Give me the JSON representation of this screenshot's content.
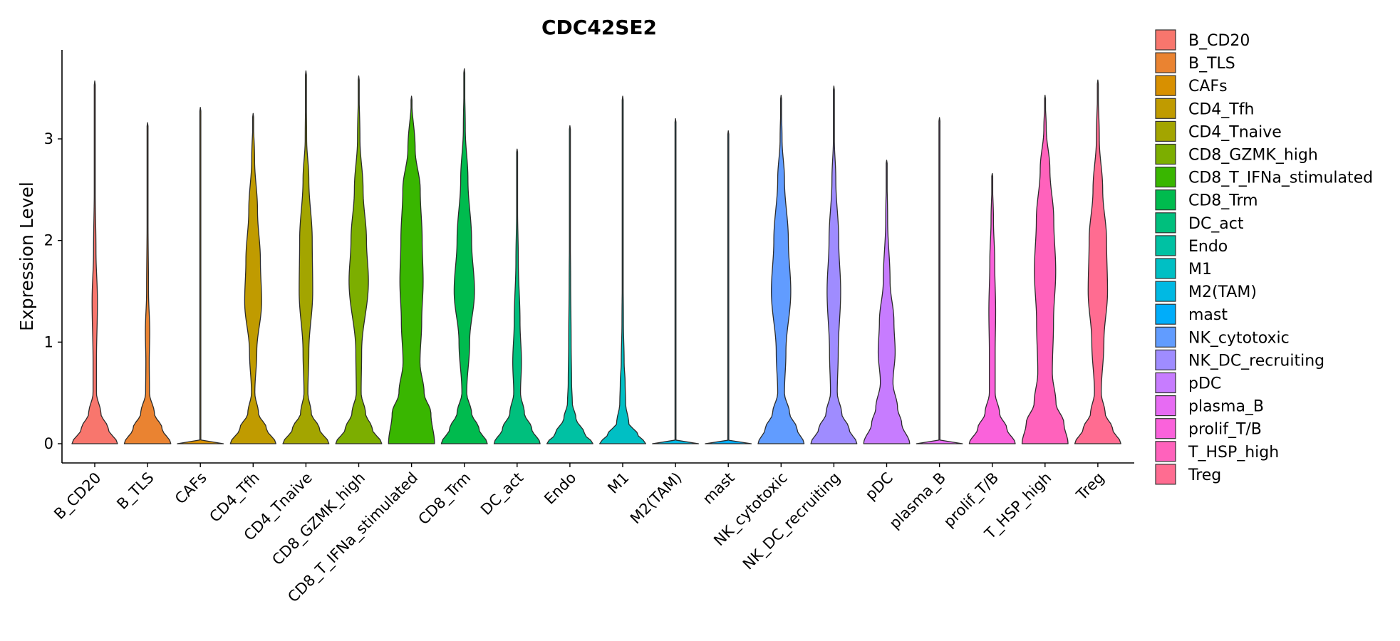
{
  "chart_data": {
    "type": "violin",
    "title": "CDC42SE2",
    "xlabel": "",
    "ylabel": "Expression Level",
    "ylim": [
      0,
      3.9
    ],
    "yticks": [
      0,
      1,
      2,
      3
    ],
    "legend_position": "right",
    "categories": [
      {
        "name": "B_CD20",
        "color": "#F8766D",
        "max": 3.57,
        "profile": [
          [
            0,
            0.94
          ],
          [
            0.15,
            0.55
          ],
          [
            0.3,
            0.25
          ],
          [
            0.5,
            0.07
          ],
          [
            0.8,
            0.07
          ],
          [
            1.4,
            0.11
          ],
          [
            1.9,
            0.05
          ],
          [
            2.5,
            0.02
          ],
          [
            3.57,
            0
          ]
        ]
      },
      {
        "name": "B_TLS",
        "color": "#EA8331",
        "max": 3.16,
        "profile": [
          [
            0,
            0.96
          ],
          [
            0.15,
            0.6
          ],
          [
            0.3,
            0.28
          ],
          [
            0.5,
            0.08
          ],
          [
            0.8,
            0.07
          ],
          [
            1.1,
            0.09
          ],
          [
            1.5,
            0.04
          ],
          [
            2.2,
            0.02
          ],
          [
            3.16,
            0
          ]
        ]
      },
      {
        "name": "CAFs",
        "color": "#D89000",
        "max": 3.31,
        "profile": [
          [
            0,
            0.95
          ],
          [
            0.02,
            0.01
          ],
          [
            0.5,
            0.005
          ],
          [
            3.31,
            0
          ]
        ]
      },
      {
        "name": "CD4_Tfh",
        "color": "#C09B00",
        "max": 3.25,
        "profile": [
          [
            0,
            0.94
          ],
          [
            0.15,
            0.55
          ],
          [
            0.3,
            0.22
          ],
          [
            0.5,
            0.07
          ],
          [
            0.9,
            0.15
          ],
          [
            1.4,
            0.35
          ],
          [
            1.8,
            0.3
          ],
          [
            2.3,
            0.18
          ],
          [
            2.8,
            0.06
          ],
          [
            3.25,
            0
          ]
        ]
      },
      {
        "name": "CD4_Tnaive",
        "color": "#A3A500",
        "max": 3.67,
        "profile": [
          [
            0,
            0.95
          ],
          [
            0.15,
            0.55
          ],
          [
            0.3,
            0.22
          ],
          [
            0.5,
            0.08
          ],
          [
            0.9,
            0.12
          ],
          [
            1.5,
            0.28
          ],
          [
            2.0,
            0.26
          ],
          [
            2.6,
            0.12
          ],
          [
            3.0,
            0.03
          ],
          [
            3.67,
            0
          ]
        ]
      },
      {
        "name": "CD8_GZMK_high",
        "color": "#7CAE00",
        "max": 3.62,
        "profile": [
          [
            0,
            0.95
          ],
          [
            0.15,
            0.55
          ],
          [
            0.3,
            0.28
          ],
          [
            0.5,
            0.1
          ],
          [
            0.9,
            0.12
          ],
          [
            1.6,
            0.4
          ],
          [
            2.0,
            0.32
          ],
          [
            2.5,
            0.18
          ],
          [
            3.0,
            0.05
          ],
          [
            3.62,
            0
          ]
        ]
      },
      {
        "name": "CD8_T_IFNa_stimulated",
        "color": "#39B600",
        "max": 3.42,
        "profile": [
          [
            0,
            0.95
          ],
          [
            0.3,
            0.8
          ],
          [
            0.5,
            0.52
          ],
          [
            0.8,
            0.35
          ],
          [
            1.2,
            0.42
          ],
          [
            1.6,
            0.48
          ],
          [
            2.0,
            0.44
          ],
          [
            2.5,
            0.36
          ],
          [
            2.9,
            0.15
          ],
          [
            3.42,
            0
          ]
        ]
      },
      {
        "name": "CD8_Trm",
        "color": "#00BB4E",
        "max": 3.69,
        "profile": [
          [
            0,
            0.95
          ],
          [
            0.15,
            0.6
          ],
          [
            0.3,
            0.3
          ],
          [
            0.5,
            0.1
          ],
          [
            1.0,
            0.22
          ],
          [
            1.5,
            0.42
          ],
          [
            2.0,
            0.3
          ],
          [
            2.6,
            0.15
          ],
          [
            3.1,
            0.04
          ],
          [
            3.69,
            0
          ]
        ]
      },
      {
        "name": "DC_act",
        "color": "#00BF7D",
        "max": 2.9,
        "profile": [
          [
            0,
            0.95
          ],
          [
            0.15,
            0.6
          ],
          [
            0.3,
            0.3
          ],
          [
            0.5,
            0.14
          ],
          [
            0.8,
            0.18
          ],
          [
            1.2,
            0.12
          ],
          [
            1.8,
            0.05
          ],
          [
            2.3,
            0.02
          ],
          [
            2.9,
            0
          ]
        ]
      },
      {
        "name": "Endo",
        "color": "#00C1A3",
        "max": 3.13,
        "profile": [
          [
            0,
            0.95
          ],
          [
            0.1,
            0.6
          ],
          [
            0.25,
            0.25
          ],
          [
            0.4,
            0.1
          ],
          [
            0.6,
            0.07
          ],
          [
            1.0,
            0.05
          ],
          [
            1.6,
            0.03
          ],
          [
            2.2,
            0.01
          ],
          [
            3.13,
            0
          ]
        ]
      },
      {
        "name": "M1",
        "color": "#00BFC4",
        "max": 3.42,
        "profile": [
          [
            0,
            0.95
          ],
          [
            0.1,
            0.6
          ],
          [
            0.2,
            0.25
          ],
          [
            0.4,
            0.12
          ],
          [
            0.6,
            0.1
          ],
          [
            0.8,
            0.06
          ],
          [
            1.2,
            0.03
          ],
          [
            1.8,
            0.01
          ],
          [
            3.42,
            0
          ]
        ]
      },
      {
        "name": "M2(TAM)",
        "color": "#00B9E3",
        "max": 3.2,
        "profile": [
          [
            0,
            0.95
          ],
          [
            0.02,
            0.01
          ],
          [
            0.5,
            0.005
          ],
          [
            3.2,
            0
          ]
        ]
      },
      {
        "name": "mast",
        "color": "#00ADFA",
        "max": 3.08,
        "profile": [
          [
            0,
            0.95
          ],
          [
            0.02,
            0.01
          ],
          [
            0.5,
            0.005
          ],
          [
            3.08,
            0
          ]
        ]
      },
      {
        "name": "NK_cytotoxic",
        "color": "#619CFF",
        "max": 3.43,
        "profile": [
          [
            0,
            0.95
          ],
          [
            0.15,
            0.65
          ],
          [
            0.3,
            0.35
          ],
          [
            0.5,
            0.14
          ],
          [
            0.9,
            0.2
          ],
          [
            1.5,
            0.4
          ],
          [
            2.0,
            0.3
          ],
          [
            2.6,
            0.14
          ],
          [
            3.0,
            0.04
          ],
          [
            3.43,
            0
          ]
        ]
      },
      {
        "name": "NK_DC_recruiting",
        "color": "#9F8CFF",
        "max": 3.52,
        "profile": [
          [
            0,
            0.95
          ],
          [
            0.15,
            0.62
          ],
          [
            0.3,
            0.32
          ],
          [
            0.5,
            0.14
          ],
          [
            0.9,
            0.18
          ],
          [
            1.5,
            0.28
          ],
          [
            2.0,
            0.2
          ],
          [
            2.6,
            0.08
          ],
          [
            3.0,
            0.02
          ],
          [
            3.52,
            0
          ]
        ]
      },
      {
        "name": "pDC",
        "color": "#C77CFF",
        "max": 2.79,
        "profile": [
          [
            0,
            0.95
          ],
          [
            0.2,
            0.62
          ],
          [
            0.35,
            0.45
          ],
          [
            0.6,
            0.26
          ],
          [
            0.9,
            0.35
          ],
          [
            1.2,
            0.3
          ],
          [
            1.6,
            0.14
          ],
          [
            2.2,
            0.04
          ],
          [
            2.79,
            0
          ]
        ]
      },
      {
        "name": "plasma_B",
        "color": "#E76BF3",
        "max": 3.21,
        "profile": [
          [
            0,
            0.95
          ],
          [
            0.02,
            0.01
          ],
          [
            0.5,
            0.005
          ],
          [
            3.21,
            0
          ]
        ]
      },
      {
        "name": "prolif_T/B",
        "color": "#FA62DB",
        "max": 2.66,
        "profile": [
          [
            0,
            0.95
          ],
          [
            0.15,
            0.6
          ],
          [
            0.3,
            0.3
          ],
          [
            0.5,
            0.12
          ],
          [
            0.9,
            0.12
          ],
          [
            1.3,
            0.14
          ],
          [
            1.8,
            0.1
          ],
          [
            2.2,
            0.05
          ],
          [
            2.66,
            0
          ]
        ]
      },
      {
        "name": "T_HSP_high",
        "color": "#FF62BC",
        "max": 3.43,
        "profile": [
          [
            0,
            0.95
          ],
          [
            0.2,
            0.78
          ],
          [
            0.4,
            0.45
          ],
          [
            0.7,
            0.3
          ],
          [
            1.2,
            0.35
          ],
          [
            1.7,
            0.44
          ],
          [
            2.2,
            0.36
          ],
          [
            2.7,
            0.2
          ],
          [
            3.1,
            0.05
          ],
          [
            3.43,
            0
          ]
        ]
      },
      {
        "name": "Treg",
        "color": "#FF6C91",
        "max": 3.58,
        "profile": [
          [
            0,
            0.95
          ],
          [
            0.15,
            0.6
          ],
          [
            0.3,
            0.3
          ],
          [
            0.5,
            0.14
          ],
          [
            1.0,
            0.25
          ],
          [
            1.5,
            0.4
          ],
          [
            2.0,
            0.36
          ],
          [
            2.5,
            0.2
          ],
          [
            3.0,
            0.06
          ],
          [
            3.58,
            0
          ]
        ]
      }
    ]
  }
}
